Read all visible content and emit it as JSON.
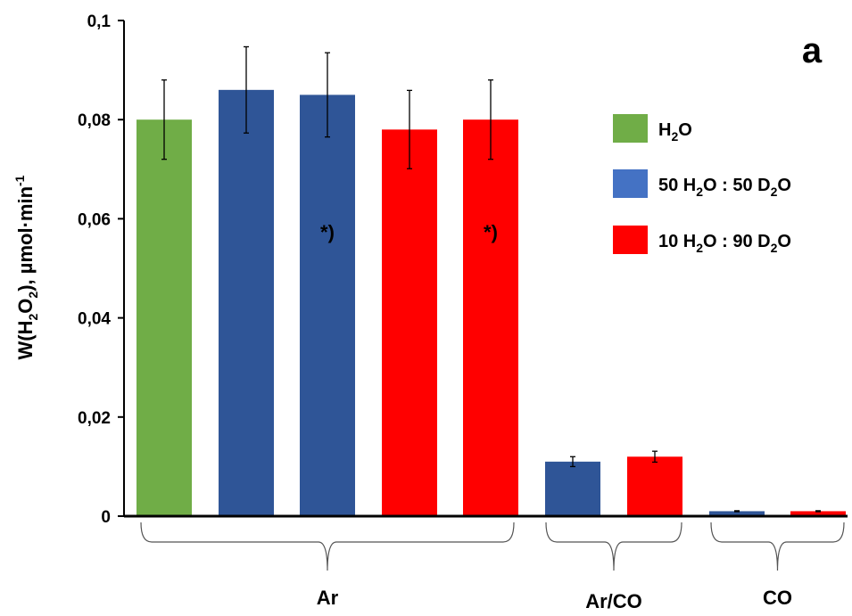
{
  "chart_data": {
    "type": "bar",
    "panel_letter": "a",
    "ylabel_parts": {
      "pre": "W(H",
      "sub1": "2",
      "mid": "O",
      "sub2": "2",
      "post": "), µmol·min",
      "sup": "-1"
    },
    "ylim": [
      0,
      0.1
    ],
    "y_ticks": [
      {
        "value": 0,
        "label": "0"
      },
      {
        "value": 0.02,
        "label": "0,02"
      },
      {
        "value": 0.04,
        "label": "0,04"
      },
      {
        "value": 0.06,
        "label": "0,06"
      },
      {
        "value": 0.08,
        "label": "0,08"
      },
      {
        "value": 0.1,
        "label": "0,1"
      }
    ],
    "grid": false,
    "legend_position": "right",
    "groups": [
      {
        "label": "Ar",
        "bars": [
          0,
          1,
          2,
          3,
          4
        ]
      },
      {
        "label": "Ar/CO",
        "bars": [
          5,
          6
        ]
      },
      {
        "label": "CO",
        "bars": [
          7,
          8
        ]
      }
    ],
    "bars": [
      {
        "series": "H2O",
        "value": 0.08,
        "error": 0.008,
        "note": ""
      },
      {
        "series": "50 H2O : 50 D2O",
        "value": 0.086,
        "error": 0.0087,
        "note": ""
      },
      {
        "series": "50 H2O : 50 D2O",
        "value": 0.085,
        "error": 0.0085,
        "note": "*)"
      },
      {
        "series": "10 H2O : 90 D2O",
        "value": 0.078,
        "error": 0.0079,
        "note": ""
      },
      {
        "series": "10 H2O : 90 D2O",
        "value": 0.08,
        "error": 0.008,
        "note": "*)"
      },
      {
        "series": "50 H2O : 50 D2O",
        "value": 0.011,
        "error": 0.001,
        "note": ""
      },
      {
        "series": "10 H2O : 90 D2O",
        "value": 0.012,
        "error": 0.0011,
        "note": ""
      },
      {
        "series": "50 H2O : 50 D2O",
        "value": 0.001,
        "error": 0.0001,
        "note": ""
      },
      {
        "series": "10 H2O : 90 D2O",
        "value": 0.001,
        "error": 0.0001,
        "note": ""
      }
    ],
    "series": [
      {
        "name": "H2O",
        "color": "#70ad47",
        "bar_color": "#70ad47",
        "label_parts": [
          "H",
          "2",
          "O",
          "",
          ""
        ]
      },
      {
        "name": "50 H2O : 50 D2O",
        "color": "#4472c4",
        "bar_color": "#2f5597",
        "label_parts": [
          "50 H",
          "2",
          "O : 50 D",
          "2",
          "O"
        ]
      },
      {
        "name": "10 H2O : 90 D2O",
        "color": "#ff0000",
        "bar_color": "#ff0000",
        "label_parts": [
          "10 H",
          "2",
          "O : 90 D",
          "2",
          "O"
        ]
      }
    ]
  }
}
